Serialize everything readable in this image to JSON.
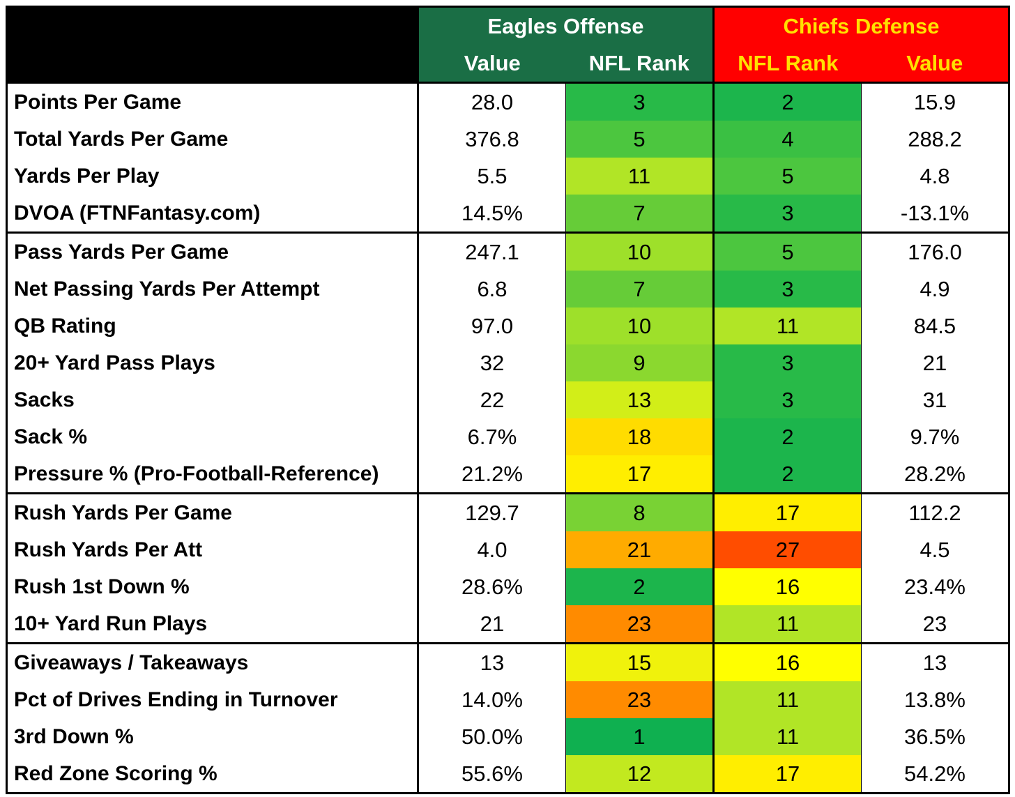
{
  "chart_data": {
    "type": "table",
    "header": {
      "left_group": "Eagles Offense",
      "right_group": "Chiefs Defense",
      "left_cols": [
        "Value",
        "NFL Rank"
      ],
      "right_cols": [
        "NFL Rank",
        "Value"
      ]
    },
    "sections": [
      {
        "rows": [
          {
            "stat": "Points Per Game",
            "eag_value": "28.0",
            "eag_rank": "3",
            "chf_rank": "2",
            "chf_value": "15.9"
          },
          {
            "stat": "Total Yards Per Game",
            "eag_value": "376.8",
            "eag_rank": "5",
            "chf_rank": "4",
            "chf_value": "288.2"
          },
          {
            "stat": "Yards Per Play",
            "eag_value": "5.5",
            "eag_rank": "11",
            "chf_rank": "5",
            "chf_value": "4.8"
          },
          {
            "stat": "DVOA (FTNFantasy.com)",
            "eag_value": "14.5%",
            "eag_rank": "7",
            "chf_rank": "3",
            "chf_value": "-13.1%"
          }
        ]
      },
      {
        "rows": [
          {
            "stat": "Pass Yards Per Game",
            "eag_value": "247.1",
            "eag_rank": "10",
            "chf_rank": "5",
            "chf_value": "176.0"
          },
          {
            "stat": "Net Passing Yards Per Attempt",
            "eag_value": "6.8",
            "eag_rank": "7",
            "chf_rank": "3",
            "chf_value": "4.9"
          },
          {
            "stat": "QB Rating",
            "eag_value": "97.0",
            "eag_rank": "10",
            "chf_rank": "11",
            "chf_value": "84.5"
          },
          {
            "stat": "20+ Yard Pass Plays",
            "eag_value": "32",
            "eag_rank": "9",
            "chf_rank": "3",
            "chf_value": "21"
          },
          {
            "stat": "Sacks",
            "eag_value": "22",
            "eag_rank": "13",
            "chf_rank": "3",
            "chf_value": "31"
          },
          {
            "stat": "Sack %",
            "eag_value": "6.7%",
            "eag_rank": "18",
            "chf_rank": "2",
            "chf_value": "9.7%"
          },
          {
            "stat": "Pressure % (Pro-Football-Reference)",
            "eag_value": "21.2%",
            "eag_rank": "17",
            "chf_rank": "2",
            "chf_value": "28.2%"
          }
        ]
      },
      {
        "rows": [
          {
            "stat": "Rush Yards Per Game",
            "eag_value": "129.7",
            "eag_rank": "8",
            "chf_rank": "17",
            "chf_value": "112.2"
          },
          {
            "stat": "Rush Yards Per Att",
            "eag_value": "4.0",
            "eag_rank": "21",
            "chf_rank": "27",
            "chf_value": "4.5"
          },
          {
            "stat": "Rush 1st Down %",
            "eag_value": "28.6%",
            "eag_rank": "2",
            "chf_rank": "16",
            "chf_value": "23.4%"
          },
          {
            "stat": "10+ Yard Run Plays",
            "eag_value": "21",
            "eag_rank": "23",
            "chf_rank": "11",
            "chf_value": "23"
          }
        ]
      },
      {
        "rows": [
          {
            "stat": "Giveaways / Takeaways",
            "eag_value": "13",
            "eag_rank": "15",
            "chf_rank": "16",
            "chf_value": "13"
          },
          {
            "stat": "Pct of Drives Ending in Turnover",
            "eag_value": "14.0%",
            "eag_rank": "23",
            "chf_rank": "11",
            "chf_value": "13.8%"
          },
          {
            "stat": "3rd Down %",
            "eag_value": "50.0%",
            "eag_rank": "1",
            "chf_rank": "11",
            "chf_value": "36.5%"
          },
          {
            "stat": "Red Zone Scoring %",
            "eag_value": "55.6%",
            "eag_rank": "12",
            "chf_rank": "17",
            "chf_value": "54.2%"
          }
        ]
      }
    ],
    "rank_colors": {
      "1": "#0fb050",
      "2": "#1cb54c",
      "3": "#28ba48",
      "4": "#3ac043",
      "5": "#4cc63f",
      "7": "#66cc38",
      "8": "#79d234",
      "9": "#8bd82f",
      "10": "#9ee02a",
      "11": "#b1e526",
      "12": "#c2e91f",
      "13": "#d2ee18",
      "15": "#f0f20c",
      "16": "#ffff00",
      "17": "#ffee00",
      "18": "#ffdc00",
      "21": "#ffab00",
      "23": "#ff8b00",
      "27": "#ff4d00"
    }
  }
}
